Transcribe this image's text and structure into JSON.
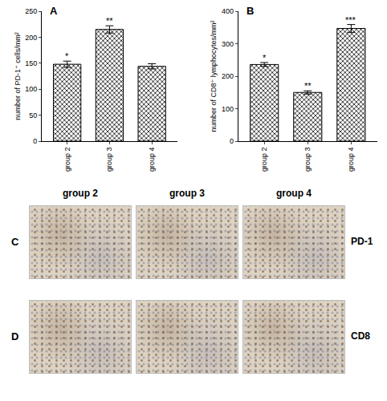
{
  "chart_data": [
    {
      "panel": "A",
      "type": "bar",
      "categories": [
        "group 2",
        "group 3",
        "group 4"
      ],
      "values": [
        148,
        215,
        144
      ],
      "errors": [
        6,
        7,
        5
      ],
      "significance": [
        "*",
        "**",
        null
      ],
      "y_label": "number of PD-1⁺ cells/mm²",
      "ylim": [
        0,
        250
      ],
      "yticks": [
        0,
        50,
        100,
        150,
        200,
        250
      ],
      "color": "#222222"
    },
    {
      "panel": "B",
      "type": "bar",
      "categories": [
        "group 2",
        "group 3",
        "group 4"
      ],
      "values": [
        236,
        150,
        347
      ],
      "errors": [
        6,
        5,
        12
      ],
      "significance": [
        "*",
        "**",
        "***"
      ],
      "y_label": "number of CD8⁺ lymphocytes/mm²",
      "ylim": [
        0,
        400
      ],
      "yticks": [
        0,
        100,
        200,
        300,
        400
      ],
      "color": "#222222"
    }
  ],
  "micrographs": {
    "columns": [
      "group 2",
      "group 3",
      "group 4"
    ],
    "rows": [
      {
        "panel": "C",
        "stain": "PD-1"
      },
      {
        "panel": "D",
        "stain": "CD8"
      }
    ]
  }
}
